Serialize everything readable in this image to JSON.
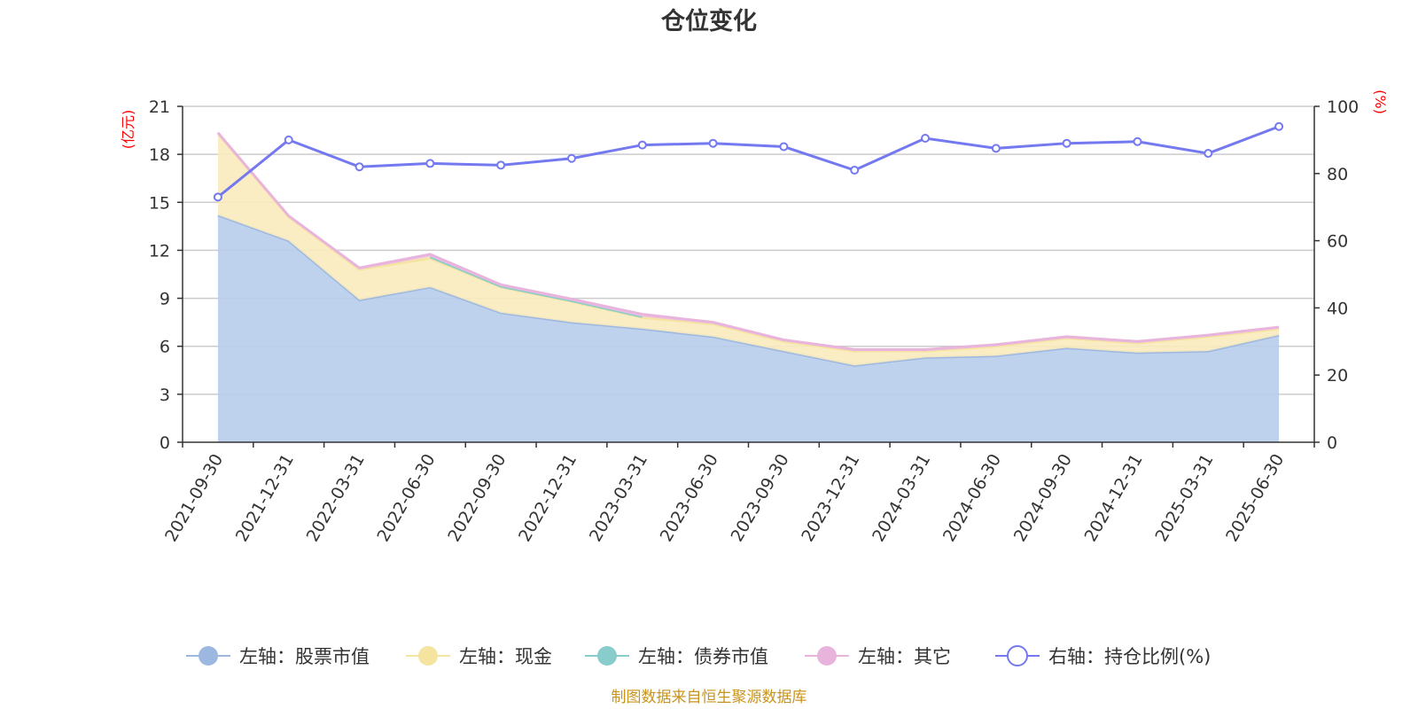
{
  "chart_data": {
    "type": "area",
    "title": "仓位变化",
    "categories": [
      "2021-09-30",
      "2021-12-31",
      "2022-03-31",
      "2022-06-30",
      "2022-09-30",
      "2022-12-31",
      "2023-03-31",
      "2023-06-30",
      "2023-09-30",
      "2023-12-31",
      "2024-03-31",
      "2024-06-30",
      "2024-09-30",
      "2024-12-31",
      "2025-03-31",
      "2025-06-30"
    ],
    "left_axis": {
      "unit": "(亿元)",
      "min": 0,
      "max": 21,
      "ticks": [
        "0",
        "3",
        "6",
        "9",
        "12",
        "15",
        "18",
        "21"
      ]
    },
    "right_axis": {
      "unit": "(%)",
      "min": 0,
      "max": 100,
      "ticks": [
        "0",
        "20",
        "40",
        "60",
        "80",
        "100"
      ]
    },
    "stacked": true,
    "series": [
      {
        "name": "左轴：股票市值",
        "axis": "left",
        "color": "#9db8e0",
        "fill": "#b8cdeb",
        "values": [
          14.2,
          12.6,
          8.9,
          9.7,
          8.1,
          7.5,
          7.1,
          6.6,
          5.7,
          4.8,
          5.3,
          5.4,
          5.9,
          5.6,
          5.7,
          6.7
        ]
      },
      {
        "name": "左轴：现金",
        "axis": "left",
        "color": "#f5e4a0",
        "fill": "#faebbe",
        "values": [
          5.1,
          1.5,
          1.9,
          1.8,
          1.6,
          1.3,
          0.7,
          0.8,
          0.6,
          0.9,
          0.4,
          0.6,
          0.6,
          0.6,
          0.9,
          0.4
        ]
      },
      {
        "name": "左轴：债券市值",
        "axis": "left",
        "color": "#88cccc",
        "fill": "#9bd6d4",
        "values": [
          null,
          null,
          null,
          0.1,
          0.05,
          0.05,
          0.05,
          null,
          null,
          null,
          null,
          null,
          null,
          null,
          null,
          null
        ]
      },
      {
        "name": "左轴：其它",
        "axis": "left",
        "color": "#e8b4dc",
        "fill": "#eec0e2",
        "values": [
          0.05,
          0.05,
          0.1,
          0.15,
          0.1,
          0.1,
          0.15,
          0.1,
          0.1,
          0.1,
          0.1,
          0.1,
          0.1,
          0.1,
          0.1,
          0.1
        ]
      },
      {
        "name": "右轴：持仓比例(%)",
        "axis": "right",
        "type": "line",
        "color": "#7479f0",
        "values": [
          73,
          90,
          82,
          83,
          82.5,
          84.5,
          88.5,
          89,
          88,
          81,
          90.5,
          87.5,
          89,
          89.5,
          86,
          94
        ]
      }
    ],
    "legend_position": "bottom-center",
    "grid": true
  },
  "source_note": "制图数据来自恒生聚源数据库"
}
